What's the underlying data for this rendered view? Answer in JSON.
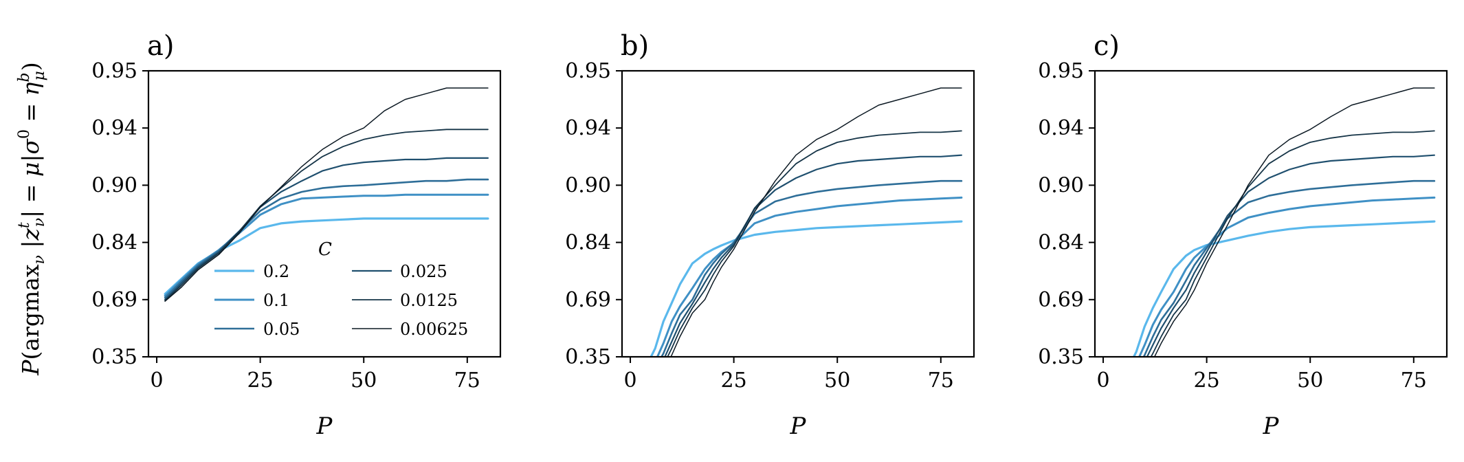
{
  "figure": {
    "ylabel": "P(argmax_ν |z_ν^t| = μ | σ^0 = η_μ^b)",
    "legend_title": "C"
  },
  "chart_data": [
    {
      "type": "line",
      "panel_label": "a)",
      "xlabel": "P",
      "xlim": [
        -2,
        83
      ],
      "xticks": [
        0,
        25,
        50,
        75
      ],
      "yscale": "custom-nonlinear",
      "yticks": [
        "0.35",
        "0.69",
        "0.84",
        "0.90",
        "0.94",
        "0.95"
      ],
      "x": [
        2,
        6,
        10,
        15,
        20,
        25,
        30,
        35,
        40,
        45,
        50,
        55,
        60,
        65,
        70,
        75,
        80
      ],
      "series": [
        {
          "name": "0.2",
          "color": "#5ab8ec",
          "values": [
            0.705,
            0.745,
            0.785,
            0.818,
            0.842,
            0.855,
            0.86,
            0.862,
            0.863,
            0.864,
            0.865,
            0.865,
            0.865,
            0.865,
            0.865,
            0.865,
            0.865
          ]
        },
        {
          "name": "0.1",
          "color": "#3f90c5",
          "values": [
            0.7,
            0.742,
            0.783,
            0.82,
            0.85,
            0.869,
            0.88,
            0.886,
            0.887,
            0.888,
            0.889,
            0.889,
            0.89,
            0.89,
            0.89,
            0.89,
            0.89
          ]
        },
        {
          "name": "0.05",
          "color": "#2e6e98",
          "values": [
            0.695,
            0.738,
            0.78,
            0.818,
            0.852,
            0.873,
            0.886,
            0.893,
            0.897,
            0.899,
            0.9,
            0.901,
            0.902,
            0.903,
            0.903,
            0.904,
            0.904
          ]
        },
        {
          "name": "0.025",
          "color": "#1f4f6e",
          "values": [
            0.69,
            0.733,
            0.776,
            0.815,
            0.852,
            0.877,
            0.893,
            0.903,
            0.91,
            0.914,
            0.916,
            0.917,
            0.918,
            0.918,
            0.919,
            0.919,
            0.919
          ]
        },
        {
          "name": "0.0125",
          "color": "#153447",
          "values": [
            0.685,
            0.728,
            0.772,
            0.812,
            0.852,
            0.878,
            0.897,
            0.91,
            0.92,
            0.927,
            0.932,
            0.935,
            0.937,
            0.938,
            0.939,
            0.939,
            0.939
          ]
        },
        {
          "name": "0.00625",
          "color": "#0b1822",
          "values": [
            0.68,
            0.723,
            0.768,
            0.808,
            0.85,
            0.877,
            0.898,
            0.913,
            0.925,
            0.934,
            0.94,
            0.943,
            0.945,
            0.946,
            0.947,
            0.947,
            0.947
          ]
        }
      ],
      "legend": {
        "location": "lower-center",
        "columns": 2
      }
    },
    {
      "type": "line",
      "panel_label": "b)",
      "xlabel": "P",
      "xlim": [
        -2,
        83
      ],
      "xticks": [
        0,
        25,
        50,
        75
      ],
      "yscale": "custom-nonlinear",
      "yticks": [
        "0.35",
        "0.69",
        "0.84",
        "0.90",
        "0.94",
        "0.95"
      ],
      "x": [
        4,
        6,
        8,
        10,
        12,
        15,
        18,
        20,
        22,
        25,
        30,
        35,
        40,
        45,
        50,
        55,
        60,
        65,
        70,
        75,
        80
      ],
      "series": [
        {
          "name": "0.2",
          "color": "#5ab8ec",
          "values": [
            0.3,
            0.4,
            0.56,
            0.67,
            0.73,
            0.785,
            0.81,
            0.822,
            0.832,
            0.842,
            0.848,
            0.851,
            0.853,
            0.855,
            0.856,
            0.857,
            0.858,
            0.859,
            0.86,
            0.861,
            0.862
          ]
        },
        {
          "name": "0.1",
          "color": "#3f90c5",
          "values": [
            0.25,
            0.32,
            0.43,
            0.56,
            0.65,
            0.72,
            0.77,
            0.795,
            0.815,
            0.838,
            0.86,
            0.868,
            0.872,
            0.875,
            0.878,
            0.88,
            0.882,
            0.884,
            0.885,
            0.886,
            0.887
          ]
        },
        {
          "name": "0.05",
          "color": "#2e6e98",
          "values": [
            0.22,
            0.28,
            0.37,
            0.49,
            0.6,
            0.69,
            0.755,
            0.785,
            0.81,
            0.84,
            0.87,
            0.883,
            0.889,
            0.893,
            0.896,
            0.898,
            0.9,
            0.901,
            0.902,
            0.903,
            0.903
          ]
        },
        {
          "name": "0.025",
          "color": "#1f4f6e",
          "values": [
            0.2,
            0.25,
            0.33,
            0.44,
            0.55,
            0.665,
            0.735,
            0.77,
            0.8,
            0.835,
            0.875,
            0.895,
            0.905,
            0.911,
            0.915,
            0.917,
            0.918,
            0.919,
            0.92,
            0.92,
            0.921
          ]
        },
        {
          "name": "0.0125",
          "color": "#153447",
          "values": [
            0.18,
            0.22,
            0.3,
            0.4,
            0.51,
            0.64,
            0.715,
            0.755,
            0.79,
            0.83,
            0.876,
            0.9,
            0.915,
            0.924,
            0.93,
            0.933,
            0.935,
            0.936,
            0.937,
            0.937,
            0.938
          ]
        },
        {
          "name": "0.00625",
          "color": "#0b1822",
          "values": [
            0.16,
            0.2,
            0.27,
            0.36,
            0.47,
            0.61,
            0.69,
            0.735,
            0.775,
            0.822,
            0.872,
            0.903,
            0.921,
            0.932,
            0.939,
            0.942,
            0.944,
            0.945,
            0.946,
            0.947,
            0.947
          ]
        }
      ]
    },
    {
      "type": "line",
      "panel_label": "c)",
      "xlabel": "P",
      "xlim": [
        -2,
        83
      ],
      "xticks": [
        0,
        25,
        50,
        75
      ],
      "yscale": "custom-nonlinear",
      "yticks": [
        "0.35",
        "0.69",
        "0.84",
        "0.90",
        "0.94",
        "0.95"
      ],
      "x": [
        6,
        8,
        10,
        12,
        14,
        17,
        20,
        22,
        25,
        30,
        35,
        40,
        45,
        50,
        55,
        60,
        65,
        70,
        75,
        80
      ],
      "series": [
        {
          "name": "0.2",
          "color": "#5ab8ec",
          "values": [
            0.28,
            0.38,
            0.53,
            0.64,
            0.71,
            0.77,
            0.805,
            0.82,
            0.833,
            0.842,
            0.847,
            0.851,
            0.854,
            0.856,
            0.857,
            0.858,
            0.859,
            0.86,
            0.861,
            0.862
          ]
        },
        {
          "name": "0.1",
          "color": "#3f90c5",
          "values": [
            0.24,
            0.31,
            0.42,
            0.54,
            0.63,
            0.71,
            0.77,
            0.8,
            0.83,
            0.855,
            0.866,
            0.871,
            0.875,
            0.878,
            0.88,
            0.882,
            0.884,
            0.885,
            0.886,
            0.887
          ]
        },
        {
          "name": "0.05",
          "color": "#2e6e98",
          "values": [
            0.21,
            0.27,
            0.36,
            0.47,
            0.57,
            0.67,
            0.74,
            0.78,
            0.825,
            0.865,
            0.882,
            0.889,
            0.893,
            0.896,
            0.898,
            0.9,
            0.901,
            0.902,
            0.903,
            0.903
          ]
        },
        {
          "name": "0.025",
          "color": "#1f4f6e",
          "values": [
            0.19,
            0.24,
            0.32,
            0.42,
            0.52,
            0.64,
            0.715,
            0.76,
            0.815,
            0.868,
            0.893,
            0.905,
            0.911,
            0.915,
            0.917,
            0.918,
            0.919,
            0.92,
            0.92,
            0.921
          ]
        },
        {
          "name": "0.0125",
          "color": "#153447",
          "values": [
            0.17,
            0.21,
            0.28,
            0.37,
            0.47,
            0.6,
            0.69,
            0.74,
            0.8,
            0.865,
            0.898,
            0.915,
            0.924,
            0.93,
            0.933,
            0.935,
            0.936,
            0.937,
            0.937,
            0.938
          ]
        },
        {
          "name": "0.00625",
          "color": "#0b1822",
          "values": [
            0.15,
            0.19,
            0.25,
            0.33,
            0.43,
            0.56,
            0.66,
            0.715,
            0.785,
            0.858,
            0.9,
            0.921,
            0.932,
            0.939,
            0.942,
            0.944,
            0.945,
            0.946,
            0.947,
            0.947
          ]
        }
      ]
    }
  ]
}
